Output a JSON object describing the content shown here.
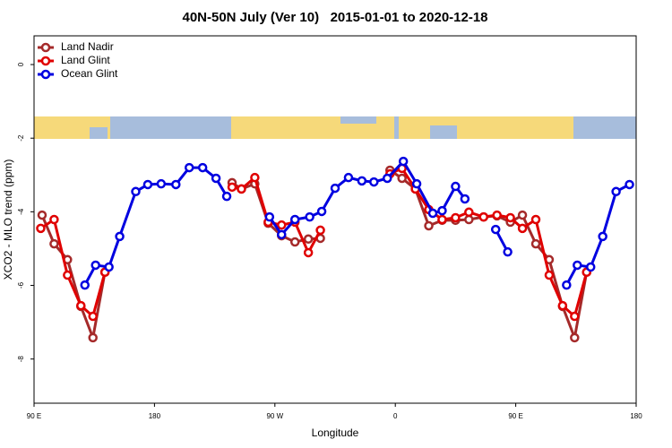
{
  "chart_data": {
    "type": "line",
    "title": "40N-50N July (Ver 10)   2015-01-01 to 2020-12-18",
    "x_label": "Longitude",
    "y_label": "XCO2 - MLO trend (ppm)",
    "xlim": [
      90,
      540
    ],
    "ylim": [
      -9.2,
      0.78
    ],
    "xticks": [
      {
        "value": 90,
        "label": "90 E"
      },
      180,
      {
        "value": 270,
        "label": "90 W"
      },
      {
        "value": 360,
        "label": "0"
      },
      {
        "value": 450,
        "label": "90 E"
      },
      {
        "value": 540,
        "label": "180"
      }
    ],
    "yticks": [
      0,
      -2,
      -4,
      -6,
      -8
    ],
    "legend": "topleft",
    "series": [
      {
        "name": "Land Nadir",
        "color": "#a52a2a",
        "x": [
          96,
          105,
          115,
          125,
          134,
          143,
          null,
          238,
          245,
          255,
          265,
          275,
          285,
          295,
          304,
          null,
          356,
          365,
          375,
          385,
          395,
          405,
          415,
          426,
          436,
          446,
          455,
          465,
          475,
          485,
          494,
          503
        ],
        "values": [
          -4.09,
          -4.87,
          -5.3,
          -6.57,
          -7.42,
          -5.64,
          null,
          -3.21,
          -3.38,
          -3.24,
          -4.31,
          -4.65,
          -4.82,
          -4.74,
          -4.72,
          null,
          -2.87,
          -3.09,
          -3.38,
          -4.38,
          -4.23,
          -4.23,
          -4.21,
          -4.14,
          -4.11,
          -4.28,
          -4.09,
          -4.87,
          -5.3,
          -6.57,
          -7.42,
          -5.64
        ]
      },
      {
        "name": "Land Glint",
        "color": "#e00000",
        "x": [
          95,
          105,
          115,
          125,
          134,
          143,
          null,
          238,
          245,
          255,
          265,
          275,
          285,
          295,
          304,
          null,
          356,
          365,
          375,
          385,
          395,
          405,
          415,
          426,
          436,
          446,
          455,
          465,
          475,
          485,
          494,
          503
        ],
        "values": [
          -4.45,
          -4.21,
          -5.72,
          -6.55,
          -6.84,
          -5.64,
          null,
          -3.33,
          -3.38,
          -3.07,
          -4.28,
          -4.36,
          -4.28,
          -5.11,
          -4.5,
          null,
          -2.97,
          -2.82,
          -3.38,
          -3.94,
          -4.21,
          -4.16,
          -4.01,
          -4.14,
          -4.09,
          -4.16,
          -4.45,
          -4.21,
          -5.72,
          -6.55,
          -6.84,
          -5.64
        ]
      },
      {
        "name": "Ocean Glint",
        "color": "#0000e0",
        "x": [
          128,
          136,
          146,
          154,
          166,
          175,
          185,
          196,
          206,
          216,
          226,
          234,
          null,
          266,
          275,
          285,
          296,
          305,
          315,
          325,
          335,
          344,
          354,
          366,
          376,
          388,
          395,
          405,
          412,
          null,
          435,
          444,
          null,
          488,
          496,
          506,
          515,
          525,
          535
        ],
        "values": [
          -5.99,
          -5.45,
          -5.5,
          -4.67,
          -3.45,
          -3.26,
          -3.24,
          -3.26,
          -2.8,
          -2.8,
          -3.09,
          -3.58,
          null,
          -4.14,
          -4.62,
          -4.21,
          -4.14,
          -3.99,
          -3.36,
          -3.07,
          -3.16,
          -3.19,
          -3.09,
          -2.63,
          -3.24,
          -4.04,
          -3.97,
          -3.31,
          -3.65,
          null,
          -4.48,
          -5.09,
          null,
          -5.99,
          -5.45,
          -5.5,
          -4.67,
          -3.45,
          -3.26
        ]
      }
    ]
  }
}
